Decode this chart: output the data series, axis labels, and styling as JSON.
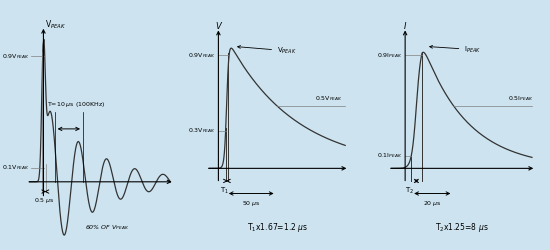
{
  "bg_color": "#cde4f0",
  "line_color": "#333333",
  "axis_color": "#000000",
  "fig_width": 5.5,
  "fig_height": 2.5,
  "panel1": {
    "label_vpeak": "V$_{PEAK}$",
    "label_09": "0.9V$_{PEAK}$",
    "label_01": "0.1V$_{PEAK}$",
    "label_period": "T=10 $\\mu$s (100KHz)",
    "label_width": "0.5 $\\mu$s",
    "label_60": "60% OF V$_{PEAK}$"
  },
  "panel2": {
    "ylabel": "V",
    "label_peak": "V$_{PEAK}$",
    "label_09": "0.9V$_{PEAK}$",
    "label_05": "0.5V$_{PEAK}$",
    "label_03": "0.3V$_{PEAK}$",
    "label_T1": "T$_1$",
    "label_50us": "50 $\\mu$s",
    "label_eq": "T$_1$x1.67=1.2 $\\mu$s"
  },
  "panel3": {
    "ylabel": "I",
    "label_peak": "I$_{PEAK}$",
    "label_09": "0.9I$_{PEAK}$",
    "label_05": "0.5I$_{PEAK}$",
    "label_01": "0.1I$_{PEAK}$",
    "label_T2": "T$_2$",
    "label_20us": "20 $\\mu$s",
    "label_eq": "T$_2$x1.25=8 $\\mu$s"
  }
}
